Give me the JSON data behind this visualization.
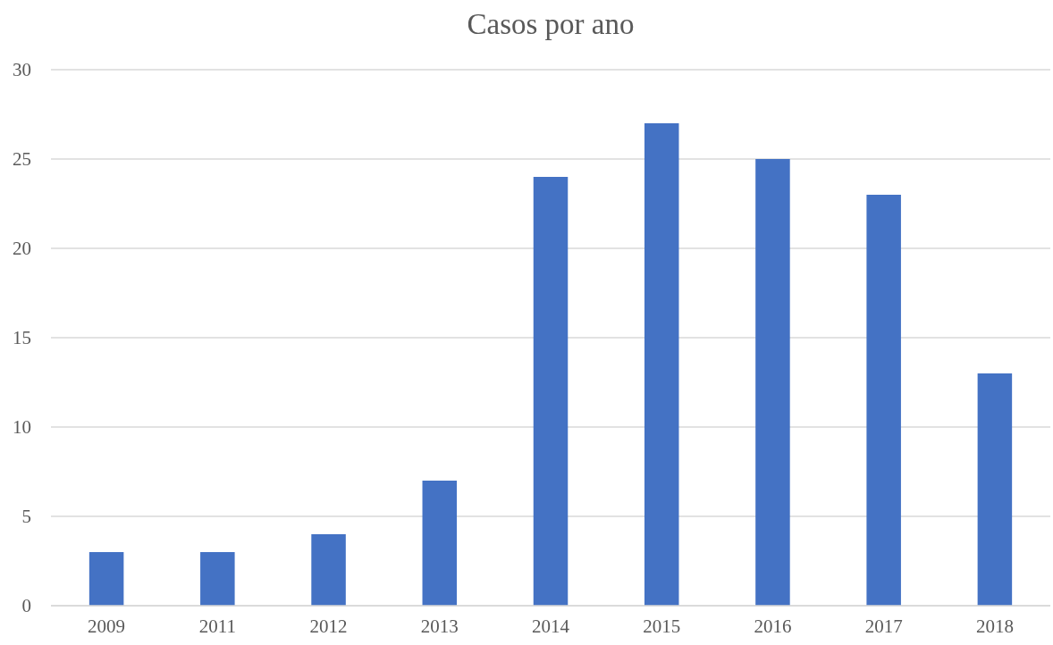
{
  "chart_data": {
    "type": "bar",
    "title": "Casos por ano",
    "categories": [
      "2009",
      "2011",
      "2012",
      "2013",
      "2014",
      "2015",
      "2016",
      "2017",
      "2018"
    ],
    "values": [
      3,
      3,
      4,
      7,
      24,
      27,
      25,
      23,
      13
    ],
    "color": "#4472c4",
    "ylim": [
      0,
      30
    ],
    "yticks": [
      0,
      5,
      10,
      15,
      20,
      25,
      30
    ],
    "grid": "y"
  }
}
